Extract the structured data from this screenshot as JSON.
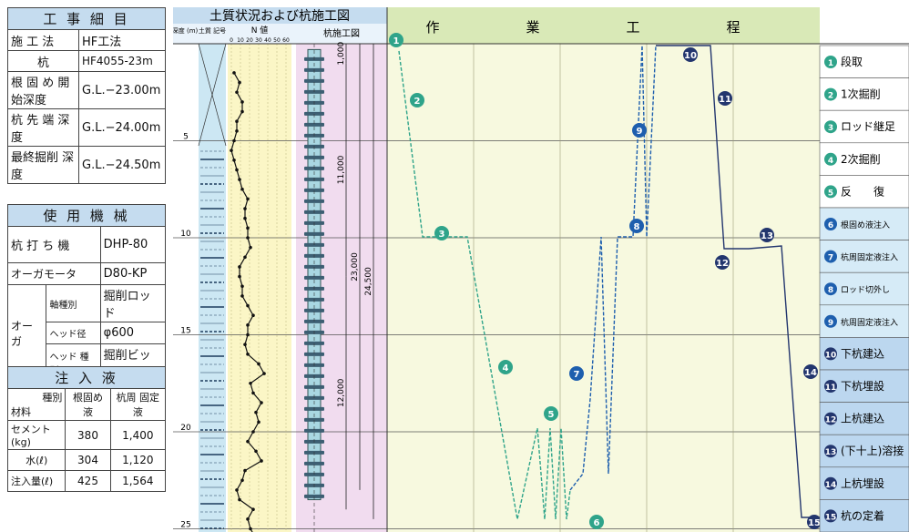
{
  "works": {
    "title": "工 事 細 目",
    "rows": [
      {
        "label": "施 工 法",
        "value": "HF工法"
      },
      {
        "label": "杭",
        "value": "HF4055-23m"
      },
      {
        "label": "根 固 め 開始深度",
        "value": "G.L.−23.00m"
      },
      {
        "label": "杭 先 端 深 度",
        "value": "G.L.−24.00m"
      },
      {
        "label": "最終掘削 深 度",
        "value": "G.L.−24.50m"
      }
    ]
  },
  "machines": {
    "title": "使 用 機 械",
    "pile_driver": {
      "label": "杭 打 ち 機",
      "value": "DHP-80"
    },
    "auger_motor": {
      "label": "オーガモータ",
      "value": "D80-KP"
    },
    "auger": {
      "label": "オーガ",
      "sub": [
        {
          "label": "軸種別",
          "value": "掘削ロッド"
        },
        {
          "label": "ヘッド径",
          "value": "φ600"
        },
        {
          "label": "ヘッド 種別",
          "value": "掘削ビット"
        }
      ]
    }
  },
  "injection": {
    "title": "注 入 液",
    "corner_top": "種別",
    "corner_bottom": "材料",
    "col1": "根固め 液",
    "col2": "杭周 固定液",
    "rows": [
      {
        "label": "セメント(kg)",
        "a": "380",
        "b": "1,400"
      },
      {
        "label": "水(ℓ)",
        "a": "304",
        "b": "1,120"
      },
      {
        "label": "注入量(ℓ)",
        "a": "425",
        "b": "1,564"
      }
    ]
  },
  "diagram": {
    "soil_title": "土質状況および杭施工図",
    "depth_head": "深度 (m)",
    "soil_head": "土質 記号",
    "n_head": "N 値",
    "n_ticks": [
      "0",
      "10",
      "20",
      "30",
      "40",
      "50",
      "60"
    ],
    "pile_head": "杭施工図",
    "depth_labels": [
      "5",
      "10",
      "15",
      "20",
      "25"
    ],
    "dims": [
      "1,000",
      "11,000",
      "12,000",
      "23,000",
      "24,500"
    ],
    "process_head": "作　業　工　程",
    "n_values": [
      1,
      3,
      2,
      4,
      4,
      2,
      2,
      1,
      0,
      1,
      2,
      3,
      4,
      6,
      5,
      5,
      6,
      6,
      7,
      5,
      3,
      3,
      4,
      4,
      6,
      8,
      6,
      6,
      5,
      6,
      10,
      12,
      7,
      8,
      11,
      9,
      10,
      8,
      6,
      9,
      11,
      5,
      4,
      2,
      3,
      8,
      6,
      7,
      9,
      11
    ],
    "steps": [
      {
        "num": "1",
        "label": "段取"
      },
      {
        "num": "2",
        "label": "1次掘削"
      },
      {
        "num": "3",
        "label": "ロッド継足"
      },
      {
        "num": "4",
        "label": "2次掘削"
      },
      {
        "num": "5",
        "label": "反　　復"
      },
      {
        "num": "6",
        "label": "根固め液注入"
      },
      {
        "num": "7",
        "label": "杭周固定液注入"
      },
      {
        "num": "8",
        "label": "ロッド切外し"
      },
      {
        "num": "9",
        "label": "杭周固定液注入"
      },
      {
        "num": "10",
        "label": "下杭建込"
      },
      {
        "num": "11",
        "label": "下杭埋設"
      },
      {
        "num": "12",
        "label": "上杭建込"
      },
      {
        "num": "13",
        "label": "(下十上)溶接"
      },
      {
        "num": "14",
        "label": "上杭埋設"
      },
      {
        "num": "15",
        "label": "杭の定着"
      }
    ],
    "colors": {
      "soil_bg": "#cce7f3",
      "n_bg": "#fbf6c6",
      "pile_bg": "#f1dcef",
      "process_bg": "#f7f9df",
      "step_green": "#2fa48a",
      "step_blue": "#1e5fae",
      "step_navy": "#23366e",
      "header_green": "#d9e9b7",
      "table_head": "#c5dcef"
    }
  }
}
